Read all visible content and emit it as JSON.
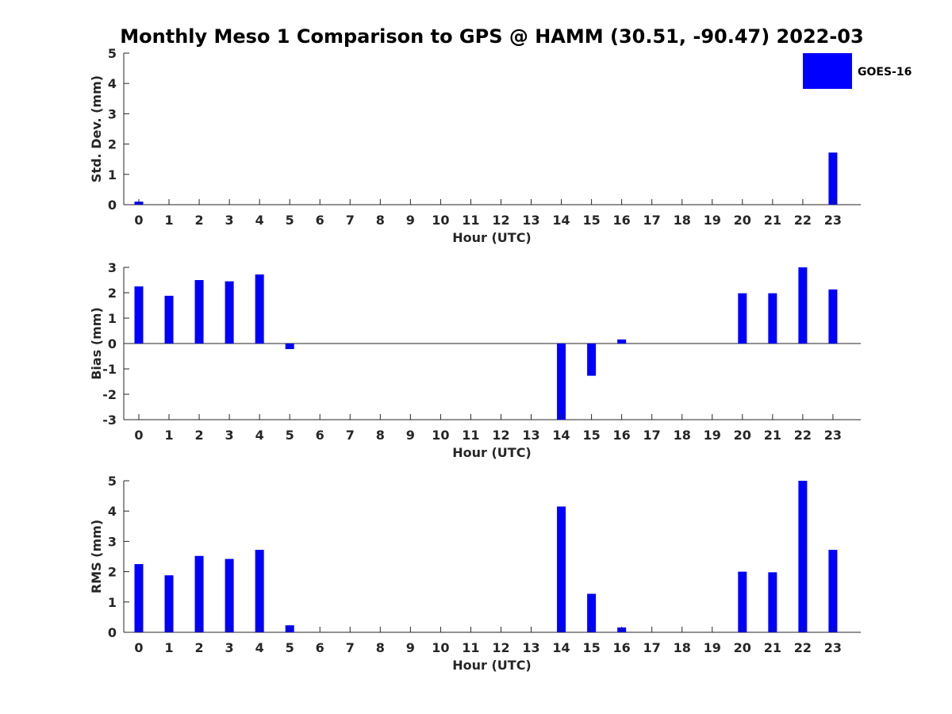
{
  "title": "Monthly Meso 1 Comparison to GPS @ HAMM (30.51, -90.47) 2022-03",
  "legend": {
    "label": "GOES-16",
    "color": "#0000ff",
    "placement": "top-right"
  },
  "chart_data": [
    {
      "type": "bar",
      "ylabel": "Std. Dev. (mm)",
      "xlabel": "Hour (UTC)",
      "ylim": [
        0,
        5
      ],
      "yticks": [
        "0",
        "1",
        "2",
        "3",
        "4",
        "5"
      ],
      "categories": [
        "0",
        "1",
        "2",
        "3",
        "4",
        "5",
        "6",
        "7",
        "8",
        "9",
        "10",
        "11",
        "12",
        "13",
        "14",
        "15",
        "16",
        "17",
        "18",
        "19",
        "20",
        "21",
        "22",
        "23"
      ],
      "series": [
        {
          "color": "#0000ff",
          "values": [
            0.1,
            0,
            0,
            0,
            0,
            0,
            0,
            0,
            0,
            0,
            0,
            0,
            0,
            0,
            0,
            0,
            0,
            0,
            0,
            0,
            0,
            0,
            0,
            1.72
          ]
        }
      ]
    },
    {
      "type": "bar",
      "ylabel": "Bias (mm)",
      "xlabel": "Hour (UTC)",
      "ylim": [
        -3,
        3
      ],
      "yticks": [
        "-3",
        "-2",
        "-1",
        "0",
        "1",
        "2",
        "3"
      ],
      "zero_line": true,
      "categories": [
        "0",
        "1",
        "2",
        "3",
        "4",
        "5",
        "6",
        "7",
        "8",
        "9",
        "10",
        "11",
        "12",
        "13",
        "14",
        "15",
        "16",
        "17",
        "18",
        "19",
        "20",
        "21",
        "22",
        "23"
      ],
      "series": [
        {
          "color": "#0000ff",
          "values": [
            2.25,
            1.88,
            2.5,
            2.45,
            2.72,
            -0.22,
            0,
            0,
            0,
            0,
            0,
            0,
            0,
            0,
            -3,
            -1.27,
            0.16,
            0,
            0,
            0,
            1.98,
            1.98,
            3,
            2.13
          ]
        }
      ]
    },
    {
      "type": "bar",
      "ylabel": "RMS (mm)",
      "xlabel": "Hour (UTC)",
      "ylim": [
        0,
        5
      ],
      "yticks": [
        "0",
        "1",
        "2",
        "3",
        "4",
        "5"
      ],
      "categories": [
        "0",
        "1",
        "2",
        "3",
        "4",
        "5",
        "6",
        "7",
        "8",
        "9",
        "10",
        "11",
        "12",
        "13",
        "14",
        "15",
        "16",
        "17",
        "18",
        "19",
        "20",
        "21",
        "22",
        "23"
      ],
      "series": [
        {
          "color": "#0000ff",
          "values": [
            2.25,
            1.88,
            2.52,
            2.42,
            2.72,
            0.23,
            0,
            0,
            0,
            0,
            0,
            0,
            0,
            0,
            4.15,
            1.27,
            0.16,
            0,
            0,
            0,
            2,
            1.98,
            5,
            2.72
          ]
        }
      ]
    }
  ]
}
